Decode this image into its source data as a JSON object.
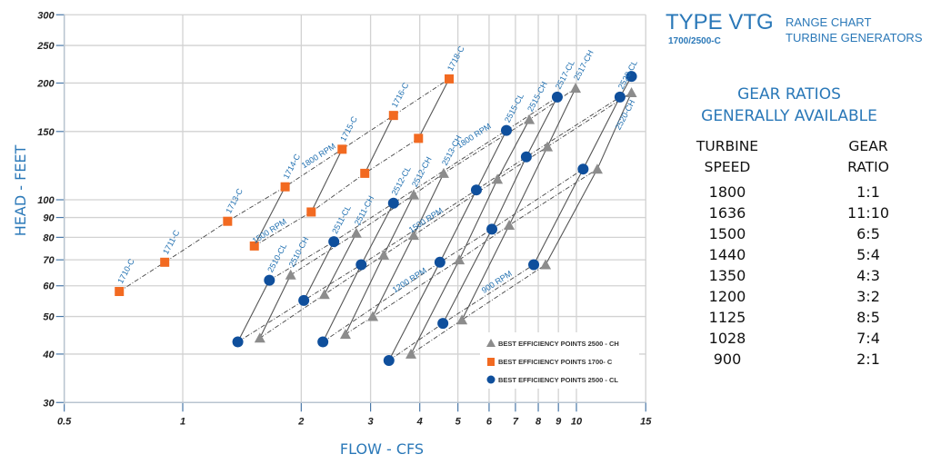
{
  "header": {
    "title": "TYPE VTG",
    "subtitle": "1700/2500-C",
    "line1": "RANGE CHART",
    "line2": "TURBINE GENERATORS"
  },
  "gear_ratios": {
    "title_line1": "GEAR RATIOS",
    "title_line2": "GENERALLY AVAILABLE",
    "col1_header": [
      "TURBINE",
      "SPEED"
    ],
    "col2_header": [
      "GEAR",
      "RATIO"
    ],
    "rows": [
      {
        "speed": "1800",
        "ratio": "1:1"
      },
      {
        "speed": "1636",
        "ratio": "11:10"
      },
      {
        "speed": "1500",
        "ratio": "6:5"
      },
      {
        "speed": "1440",
        "ratio": "5:4"
      },
      {
        "speed": "1350",
        "ratio": "4:3"
      },
      {
        "speed": "1200",
        "ratio": "3:2"
      },
      {
        "speed": "1125",
        "ratio": "8:5"
      },
      {
        "speed": "1028",
        "ratio": "7:4"
      },
      {
        "speed": "900",
        "ratio": "2:1"
      }
    ]
  },
  "chart_data": {
    "type": "scatter",
    "title": "",
    "xlabel": "FLOW - CFS",
    "ylabel": "HEAD - FEET",
    "xscale": "log",
    "yscale": "log",
    "xlim": [
      0.5,
      15
    ],
    "ylim": [
      30,
      300
    ],
    "xticks": [
      0.5,
      1,
      2,
      3,
      4,
      5,
      6,
      7,
      8,
      9,
      10,
      15
    ],
    "yticks": [
      30,
      40,
      50,
      60,
      70,
      80,
      90,
      100,
      150,
      200,
      250,
      300
    ],
    "grid": true,
    "legend": {
      "position": "bottom-right",
      "entries": [
        {
          "label": "BEST EFFICIENCY POINTS 2500 - CH",
          "marker": "triangle",
          "color": "#8c8c8c"
        },
        {
          "label": "BEST EFFICIENCY POINTS 1700- C",
          "marker": "square",
          "color": "#f26a21"
        },
        {
          "label": "BEST EFFICIENCY POINTS 2500 - CL",
          "marker": "circle",
          "color": "#0f4f9c"
        }
      ]
    },
    "series": [
      {
        "key": "1700-C",
        "marker": "square",
        "color": "#f26a21",
        "models": [
          {
            "name": "1710-C",
            "points": [
              {
                "speed": 1800,
                "x": 0.69,
                "y": 58
              }
            ]
          },
          {
            "name": "1711-C",
            "points": [
              {
                "speed": 1800,
                "x": 0.9,
                "y": 69
              }
            ]
          },
          {
            "name": "1713-C",
            "points": [
              {
                "speed": 1800,
                "x": 1.3,
                "y": 88
              }
            ]
          },
          {
            "name": "1714-C",
            "points": [
              {
                "speed": 1800,
                "x": 1.82,
                "y": 108
              },
              {
                "speed": 1500,
                "x": 1.52,
                "y": 76
              }
            ]
          },
          {
            "name": "1715-C",
            "points": [
              {
                "speed": 1800,
                "x": 2.54,
                "y": 135
              },
              {
                "speed": 1500,
                "x": 2.12,
                "y": 93
              }
            ]
          },
          {
            "name": "1716-C",
            "points": [
              {
                "speed": 1800,
                "x": 3.43,
                "y": 165
              },
              {
                "speed": 1500,
                "x": 2.9,
                "y": 117
              }
            ]
          },
          {
            "name": "1718-C",
            "points": [
              {
                "speed": 1800,
                "x": 4.75,
                "y": 205
              },
              {
                "speed": 1500,
                "x": 3.97,
                "y": 144
              }
            ]
          }
        ]
      },
      {
        "key": "2500-CL",
        "marker": "circle",
        "color": "#0f4f9c",
        "models": [
          {
            "name": "2510-CL",
            "points": [
              {
                "speed": 1800,
                "x": 1.66,
                "y": 62
              },
              {
                "speed": 1500,
                "x": 1.38,
                "y": 43
              }
            ]
          },
          {
            "name": "2511-CL",
            "points": [
              {
                "speed": 1800,
                "x": 2.42,
                "y": 78
              },
              {
                "speed": 1500,
                "x": 2.03,
                "y": 55
              }
            ]
          },
          {
            "name": "2512-CL",
            "points": [
              {
                "speed": 1800,
                "x": 3.43,
                "y": 98
              },
              {
                "speed": 1500,
                "x": 2.84,
                "y": 68
              },
              {
                "speed": 1200,
                "x": 2.27,
                "y": 43
              }
            ]
          },
          {
            "name": "2515-CL",
            "points": [
              {
                "speed": 1800,
                "x": 6.64,
                "y": 151
              },
              {
                "speed": 1500,
                "x": 5.57,
                "y": 106
              },
              {
                "speed": 1200,
                "x": 4.5,
                "y": 69
              },
              {
                "speed": 900,
                "x": 3.34,
                "y": 38.5
              }
            ]
          },
          {
            "name": "2517-CL",
            "points": [
              {
                "speed": 1800,
                "x": 8.94,
                "y": 184
              },
              {
                "speed": 1500,
                "x": 7.46,
                "y": 129
              },
              {
                "speed": 1200,
                "x": 6.1,
                "y": 84
              },
              {
                "speed": 900,
                "x": 4.58,
                "y": 48
              }
            ]
          },
          {
            "name": "2520-CL",
            "points": [
              {
                "speed": 1500,
                "x": 12.9,
                "y": 184
              },
              {
                "speed": null,
                "x": 13.8,
                "y": 208
              },
              {
                "speed": 1200,
                "x": 10.4,
                "y": 120
              },
              {
                "speed": 900,
                "x": 7.79,
                "y": 68
              }
            ]
          }
        ]
      },
      {
        "key": "2500-CH",
        "marker": "triangle",
        "color": "#8c8c8c",
        "models": [
          {
            "name": "2510-CH",
            "points": [
              {
                "speed": 1800,
                "x": 1.88,
                "y": 64
              },
              {
                "speed": 1500,
                "x": 1.57,
                "y": 44
              }
            ]
          },
          {
            "name": "2511-CH",
            "points": [
              {
                "speed": 1800,
                "x": 2.76,
                "y": 82
              },
              {
                "speed": 1500,
                "x": 2.29,
                "y": 57
              }
            ]
          },
          {
            "name": "2512-CH",
            "points": [
              {
                "speed": 1800,
                "x": 3.86,
                "y": 103
              },
              {
                "speed": 1500,
                "x": 3.24,
                "y": 72
              },
              {
                "speed": 1200,
                "x": 2.59,
                "y": 45
              }
            ]
          },
          {
            "name": "2513-CH",
            "points": [
              {
                "speed": 1800,
                "x": 4.6,
                "y": 117
              },
              {
                "speed": 1500,
                "x": 3.86,
                "y": 81
              },
              {
                "speed": 1200,
                "x": 3.04,
                "y": 50
              }
            ]
          },
          {
            "name": "2515-CH",
            "points": [
              {
                "speed": 1800,
                "x": 7.59,
                "y": 161
              },
              {
                "speed": 1500,
                "x": 6.3,
                "y": 113
              },
              {
                "speed": 1200,
                "x": 5.04,
                "y": 70
              },
              {
                "speed": 900,
                "x": 3.8,
                "y": 40
              }
            ]
          },
          {
            "name": "2517-CH",
            "points": [
              {
                "speed": 1800,
                "x": 9.95,
                "y": 194
              },
              {
                "speed": 1500,
                "x": 8.44,
                "y": 137
              },
              {
                "speed": 1200,
                "x": 6.75,
                "y": 86
              },
              {
                "speed": 900,
                "x": 5.12,
                "y": 49
              }
            ]
          },
          {
            "name": "2520-CH",
            "points": [
              {
                "speed": 1500,
                "x": 13.8,
                "y": 189
              },
              {
                "speed": 1200,
                "x": 11.3,
                "y": 120
              },
              {
                "speed": 900,
                "x": 8.35,
                "y": 68
              }
            ]
          }
        ]
      }
    ],
    "speed_labels": [
      {
        "text": "1800 RPM",
        "group": "1700-C"
      },
      {
        "text": "1500 RPM",
        "group": "1700-C"
      },
      {
        "text": "1800 RPM",
        "group": "2500"
      },
      {
        "text": "1500 RPM",
        "group": "2500"
      },
      {
        "text": "1200 RPM",
        "group": "2500"
      },
      {
        "text": "900 RPM",
        "group": "2500"
      }
    ]
  }
}
